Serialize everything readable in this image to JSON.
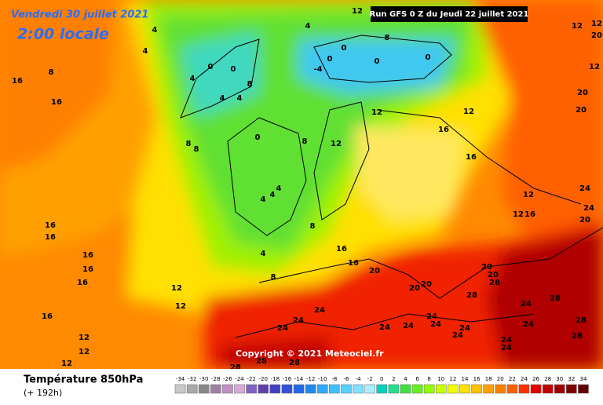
{
  "header": {
    "title": "Vendredi 30 juillet 2021",
    "subtitle": "2:00 locale"
  },
  "run_info": "Run GFS 0 Z du Jeudi 22 juillet 2021",
  "copyright": "Copyright © 2021 Meteociel.fr",
  "legend": {
    "title": "Température 850hPa",
    "subtitle": "(+ 192h)",
    "scale": [
      {
        "value": -34,
        "color": "#c8c8c8"
      },
      {
        "value": -32,
        "color": "#a8a8a8"
      },
      {
        "value": -30,
        "color": "#888888"
      },
      {
        "value": -28,
        "color": "#a080a0"
      },
      {
        "value": -26,
        "color": "#c090c0"
      },
      {
        "value": -24,
        "color": "#d8a8d8"
      },
      {
        "value": -22,
        "color": "#8060c0"
      },
      {
        "value": -20,
        "color": "#6040a8"
      },
      {
        "value": -18,
        "color": "#4040c0"
      },
      {
        "value": -16,
        "color": "#3050d8"
      },
      {
        "value": -14,
        "color": "#2068e8"
      },
      {
        "value": -12,
        "color": "#2088f0"
      },
      {
        "value": -10,
        "color": "#30a8ff"
      },
      {
        "value": -8,
        "color": "#40c0ff"
      },
      {
        "value": -6,
        "color": "#58d0ff"
      },
      {
        "value": -4,
        "color": "#80e0ff"
      },
      {
        "value": -2,
        "color": "#a8f0ff"
      },
      {
        "value": 0,
        "color": "#00d0c0"
      },
      {
        "value": 2,
        "color": "#20e090"
      },
      {
        "value": 4,
        "color": "#40e040"
      },
      {
        "value": 6,
        "color": "#68f020"
      },
      {
        "value": 8,
        "color": "#90ff00"
      },
      {
        "value": 10,
        "color": "#c8ff00"
      },
      {
        "value": 12,
        "color": "#f0ff00"
      },
      {
        "value": 14,
        "color": "#ffe000"
      },
      {
        "value": 16,
        "color": "#ffc000"
      },
      {
        "value": 18,
        "color": "#ffa000"
      },
      {
        "value": 20,
        "color": "#ff8000"
      },
      {
        "value": 22,
        "color": "#ff6000"
      },
      {
        "value": 24,
        "color": "#ff3000"
      },
      {
        "value": 26,
        "color": "#e00000"
      },
      {
        "value": 28,
        "color": "#c00000"
      },
      {
        "value": 30,
        "color": "#a00000"
      },
      {
        "value": 32,
        "color": "#800000"
      },
      {
        "value": 34,
        "color": "#600000"
      }
    ]
  },
  "map_labels": [
    16,
    8,
    16,
    16,
    16,
    16,
    16,
    16,
    16,
    12,
    12,
    12,
    12,
    12,
    4,
    8,
    8,
    16,
    16,
    20,
    20,
    20,
    28,
    24,
    24,
    24,
    24,
    24,
    24,
    24,
    24,
    24,
    24,
    24,
    28,
    28,
    28,
    24,
    24,
    28,
    28,
    28,
    4,
    0,
    0,
    4,
    4,
    8,
    0,
    8,
    4,
    4,
    4,
    8,
    8,
    0,
    -4,
    0,
    0,
    8,
    0,
    12,
    16,
    16,
    12,
    12,
    12,
    12,
    16,
    20,
    24,
    24,
    20,
    20,
    12,
    12,
    12,
    20,
    20,
    20,
    28,
    12,
    4,
    4,
    4
  ]
}
